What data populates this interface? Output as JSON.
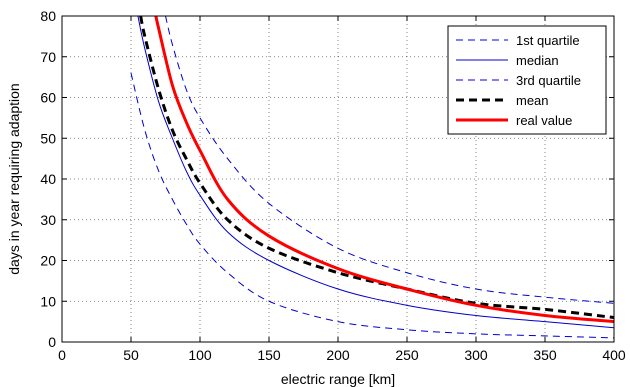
{
  "chart_data": {
    "type": "line",
    "title": "",
    "xlabel": "electric range [km]",
    "ylabel": "days in year requiring adaption",
    "xlim": [
      0,
      400
    ],
    "ylim": [
      0,
      80
    ],
    "x_ticks": [
      "0",
      "50",
      "100",
      "150",
      "200",
      "250",
      "300",
      "350",
      "400"
    ],
    "y_ticks": [
      "0",
      "10",
      "20",
      "30",
      "40",
      "50",
      "60",
      "70",
      "80"
    ],
    "grid": true,
    "legend_position": "top-right",
    "series": [
      {
        "name": "1st quartile",
        "color": "#0000cc",
        "style": "thin-dashed",
        "x": [
          50,
          60,
          70,
          80,
          90,
          100,
          120,
          150,
          200,
          250,
          300,
          350,
          400
        ],
        "y": [
          66,
          52,
          42,
          35,
          29,
          24,
          17,
          10,
          5,
          3,
          2,
          1.5,
          1
        ]
      },
      {
        "name": "median",
        "color": "#0000cc",
        "style": "thin-solid",
        "x": [
          55,
          60,
          70,
          80,
          90,
          100,
          120,
          150,
          200,
          250,
          300,
          350,
          400
        ],
        "y": [
          80,
          72,
          59,
          50,
          42,
          36,
          27,
          20,
          13,
          9,
          6.5,
          5,
          3.5
        ]
      },
      {
        "name": "3rd quartile",
        "color": "#0000cc",
        "style": "thin-dashed",
        "x": [
          75,
          80,
          90,
          100,
          120,
          150,
          200,
          250,
          300,
          350,
          400
        ],
        "y": [
          80,
          73,
          62,
          55,
          45,
          34,
          23,
          17,
          13,
          11,
          9.5
        ]
      },
      {
        "name": "mean",
        "color": "#000000",
        "style": "thick-dashed",
        "x": [
          57,
          60,
          70,
          80,
          90,
          100,
          120,
          150,
          200,
          250,
          300,
          350,
          400
        ],
        "y": [
          80,
          75,
          62,
          52,
          45,
          39,
          30,
          23,
          17,
          13,
          9.5,
          8,
          6
        ]
      },
      {
        "name": "real value",
        "color": "#ff0000",
        "style": "thick-solid",
        "x": [
          68,
          70,
          80,
          90,
          100,
          120,
          150,
          200,
          250,
          300,
          350,
          400
        ],
        "y": [
          80,
          77,
          63,
          54,
          47,
          35,
          26,
          18,
          13,
          9,
          6.5,
          5
        ]
      }
    ]
  }
}
